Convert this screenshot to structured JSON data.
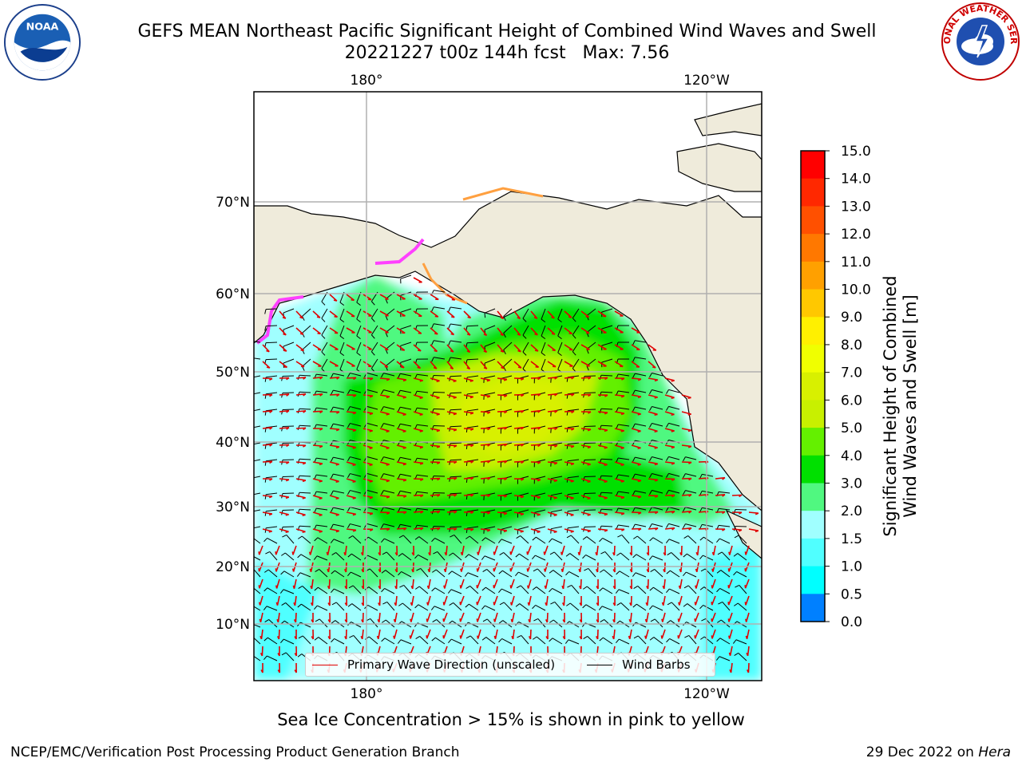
{
  "title": {
    "line1": "GEFS MEAN Northeast Pacific Significant Height of Combined Wind Waves and Swell",
    "line2": "20221227 t00z 144h fcst   Max: 7.56"
  },
  "logos": {
    "noaa": {
      "text": "NOAA",
      "icon": "noaa-logo"
    },
    "nws": {
      "text": "NATIONAL WEATHER SERVICE",
      "icon": "nws-logo"
    }
  },
  "map": {
    "lon_labels_top": [
      "180°",
      "120°W"
    ],
    "lon_labels_bottom": [
      "180°",
      "120°W"
    ],
    "lat_labels": [
      "70°N",
      "60°N",
      "50°N",
      "40°N",
      "30°N",
      "20°N",
      "10°N"
    ],
    "land_color": "#efebdb",
    "ocean_color": "#ffffff",
    "sea_ice_color": "#ff40ff"
  },
  "legend": {
    "wave_direction": "Primary Wave Direction (unscaled)",
    "wave_color": "#e00000",
    "wind_barbs": "Wind Barbs",
    "barb_color": "#000000"
  },
  "colorbar": {
    "label_line1": "Significant Height of Combined",
    "label_line2": "Wind Waves and Swell [m]",
    "ticks": [
      "15.0",
      "14.0",
      "13.0",
      "12.0",
      "11.0",
      "10.0",
      "9.0",
      "8.0",
      "7.0",
      "6.0",
      "5.0",
      "4.0",
      "3.0",
      "2.0",
      "1.5",
      "1.0",
      "0.5",
      "0.0"
    ],
    "colors_top_to_bottom": [
      "#ff0000",
      "#ff2800",
      "#ff5000",
      "#ff7800",
      "#ffa000",
      "#ffc800",
      "#fff000",
      "#f0ff00",
      "#d8f000",
      "#c8f000",
      "#64f000",
      "#00e000",
      "#50f880",
      "#a0ffff",
      "#50ffff",
      "#00ffff",
      "#0080ff",
      "#0000ff"
    ]
  },
  "footnote": "Sea Ice Concentration > 15% is shown in pink to yellow",
  "footer": {
    "left": "NCEP/EMC/Verification Post Processing Product Generation Branch",
    "right_date": "29 Dec 2022 on ",
    "right_host": "Hera"
  }
}
